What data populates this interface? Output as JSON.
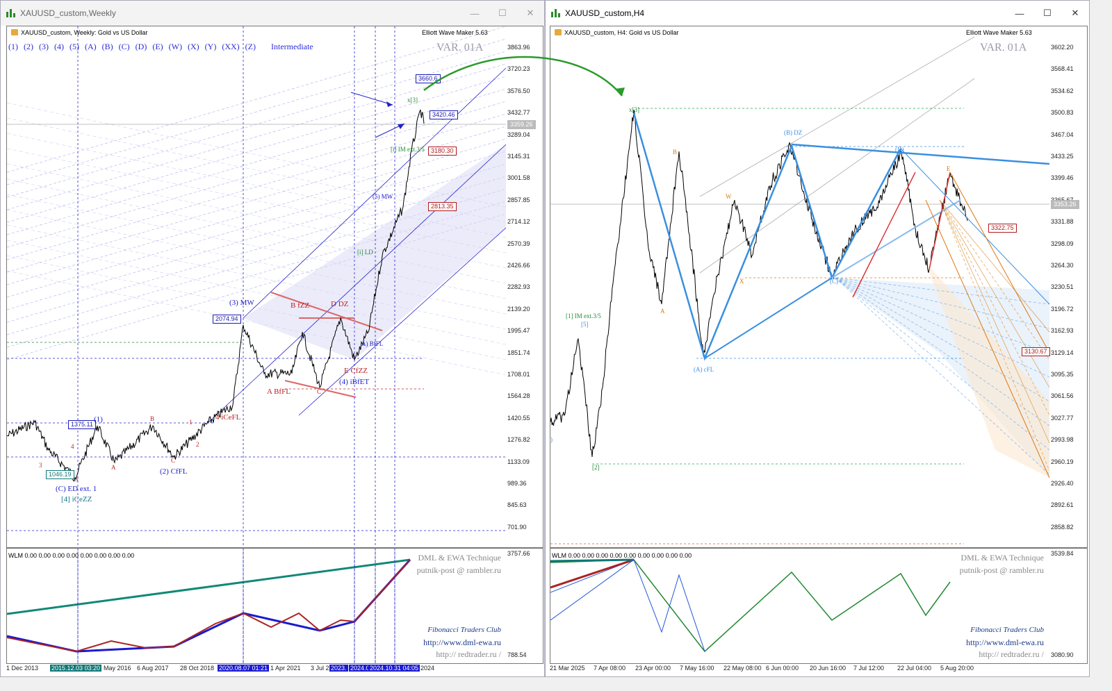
{
  "left_window": {
    "title": "XAUUSD_custom,Weekly",
    "header": "XAUUSD_custom, Weekly:  Gold vs US Dollar",
    "ewm": "Elliott Wave Maker 5.63",
    "var_label": "VAR. 01A",
    "wave_buttons": [
      "(1)",
      "(2)",
      "(3)",
      "(4)",
      "(5)",
      "(A)",
      "(B)",
      "(C)",
      "(D)",
      "(E)",
      "(W)",
      "(X)",
      "(Y)",
      "(XX)",
      "(Z)"
    ],
    "degree_label": "Intermediate",
    "price_scale": [
      "3863.96",
      "3720.23",
      "3576.50",
      "3432.77",
      "3289.04",
      "3145.31",
      "3001.58",
      "2857.85",
      "2714.12",
      "2570.39",
      "2426.66",
      "2282.93",
      "2139.20",
      "1995.47",
      "1851.74",
      "1708.01",
      "1564.28",
      "1420.55",
      "1276.82",
      "1133.09",
      "989.36",
      "845.63",
      "701.90"
    ],
    "current_price": "3359.26",
    "indicator_scale": [
      "3757.66",
      "788.54"
    ],
    "time_axis": [
      "1 Dec 2013",
      "2015.12.03 03:20",
      "May 2016",
      "6 Aug 2017",
      "28 Oct 2018",
      "2020.08.07 01:21",
      "1 Apr 2021",
      "3 Jul 2",
      "2023.",
      "2024.0",
      "2024.10.31 04:05",
      "2024"
    ],
    "price_tags": [
      "3660.6",
      "3420.46",
      "3180.30",
      "2813.35",
      "2074.94",
      "1375.11",
      "1046.19"
    ],
    "wave_labels": {
      "mw": "(3) MW",
      "c1": "(1)",
      "cf": "(2) CfFL",
      "ced": "(C) ED ext. 1",
      "iceZZ": "[4] iCeZZ",
      "ibfet": "(4) iBfET",
      "abffl": "A BfFL",
      "cdz": "D DZ",
      "ciczz": "E CfZZ",
      "icefl": "4 iCeFL",
      "bfzz": "B fZZ",
      "n3": "3",
      "n4": "4",
      "n5": "5",
      "a": "A",
      "b": "B",
      "c": "C",
      "n1": "1",
      "n2": "2",
      "c2": "C",
      "x3": "x[3]",
      "im": "[i] IM ext.3/5",
      "ld": "[i] LD",
      "a_bfl": "A) BfFL",
      "mw2": "(5) MW"
    },
    "wlm": "WLM 0.00 0.00 0.00 0.00 0.00 0.00 0.00 0.00",
    "credits": {
      "dml": "DML & EWA Technique",
      "mail": "putnik-post @ rambler.ru",
      "club": "Fibonacci      Traders      Club",
      "url": "http://www.dml-ewa.ru",
      "red": "http:// redtrader.ru /"
    }
  },
  "right_window": {
    "title": "XAUUSD_custom,H4",
    "header": "XAUUSD_custom, H4:  Gold vs US Dollar",
    "ewm": "Elliott Wave Maker 5.63",
    "var_label": "VAR. 01A",
    "price_scale": [
      "3602.20",
      "3568.41",
      "3534.62",
      "3500.83",
      "3467.04",
      "3433.25",
      "3399.46",
      "3365.67",
      "3331.88",
      "3298.09",
      "3264.30",
      "3230.51",
      "3196.72",
      "3162.93",
      "3129.14",
      "3095.35",
      "3061.56",
      "3027.77",
      "2993.98",
      "2960.19",
      "2926.40",
      "2892.61",
      "2858.82"
    ],
    "current_price": "3353.26",
    "indicator_scale": [
      "3539.84",
      "3080.90"
    ],
    "time_axis": [
      "21 Mar 2025",
      "7 Apr 08:00",
      "23 Apr 00:00",
      "7 May 16:00",
      "22 May 08:00",
      "6 Jun 00:00",
      "20 Jun 16:00",
      "7 Jul 12:00",
      "22 Jul 04:00",
      "5 Aug 20:00"
    ],
    "price_tags": [
      "3322.75",
      "3130.67"
    ],
    "wave_labels": {
      "x3": "x[3]",
      "im": "[1] IM ext.3/5",
      "five": "[5]",
      "two": "[2]",
      "bdz": "(B) DZ",
      "acf": "(A) cFL",
      "d": "(D)",
      "c": "(C)",
      "b_o": "B",
      "a_o": "A",
      "w": "W",
      "x": "X",
      "e": "E",
      "one": ")"
    },
    "wlm": "WLM 0.00 0.00 0.00 0.00 0.00 0.00 0.00 0.00 0.00",
    "credits": {
      "dml": "DML & EWA Technique",
      "mail": "putnik-post @ rambler.ru",
      "club": "Fibonacci      Traders      Club",
      "url": "http://www.dml-ewa.ru",
      "red": "http:// redtrader.ru /"
    }
  },
  "colors": {
    "wave_blue": "#2222cc",
    "wave_red": "#bb2222",
    "wave_green": "#228833",
    "light_blue": "#3a8fe0",
    "orange": "#dd7711"
  }
}
